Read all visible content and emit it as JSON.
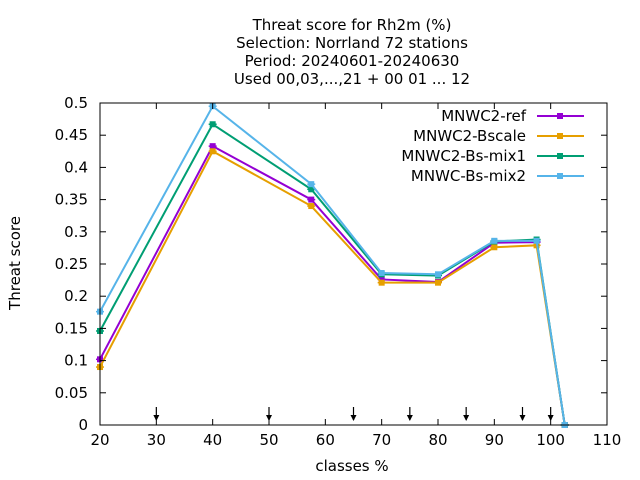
{
  "chart_data": {
    "type": "line",
    "title_lines": [
      "Threat score  for Rh2m (%)",
      "Selection: Norrland     72 stations",
      "Period: 20240601-20240630",
      "Used 00,03,...,21 + 00 01 ... 12"
    ],
    "xlabel": "classes %",
    "ylabel": "Threat score",
    "xlim": [
      20,
      110
    ],
    "ylim": [
      0,
      0.5
    ],
    "xticks": [
      "20",
      "30",
      "40",
      "50",
      "60",
      "70",
      "80",
      "90",
      "100",
      "110"
    ],
    "yticks": [
      "0",
      "0.05",
      "0.1",
      "0.15",
      "0.2",
      "0.25",
      "0.3",
      "0.35",
      "0.4",
      "0.45",
      "0.5"
    ],
    "legend_position": "top-right",
    "arrow_markers_x": [
      30,
      50,
      65,
      75,
      85,
      95,
      100
    ],
    "series": [
      {
        "name": "MNWC2-ref",
        "color": "#9400d3",
        "x": [
          20,
          40,
          57.5,
          70,
          80,
          90,
          97.5,
          102.5
        ],
        "y": [
          0.102,
          0.433,
          0.35,
          0.226,
          0.222,
          0.283,
          0.284,
          0.0
        ]
      },
      {
        "name": "MNWC2-Bscale",
        "color": "#e69f00",
        "x": [
          20,
          40,
          57.5,
          70,
          80,
          90,
          97.5,
          102.5
        ],
        "y": [
          0.09,
          0.425,
          0.34,
          0.221,
          0.221,
          0.276,
          0.279,
          0.0
        ]
      },
      {
        "name": "MNWC2-Bs-mix1",
        "color": "#009e73",
        "x": [
          20,
          40,
          57.5,
          70,
          80,
          90,
          97.5,
          102.5
        ],
        "y": [
          0.146,
          0.467,
          0.366,
          0.234,
          0.232,
          0.285,
          0.288,
          0.0
        ]
      },
      {
        "name": "MNWC-Bs-mix2",
        "color": "#56b4e9",
        "x": [
          20,
          40,
          57.5,
          70,
          80,
          90,
          97.5,
          102.5
        ],
        "y": [
          0.176,
          0.495,
          0.374,
          0.236,
          0.234,
          0.286,
          0.286,
          0.0
        ]
      }
    ]
  }
}
